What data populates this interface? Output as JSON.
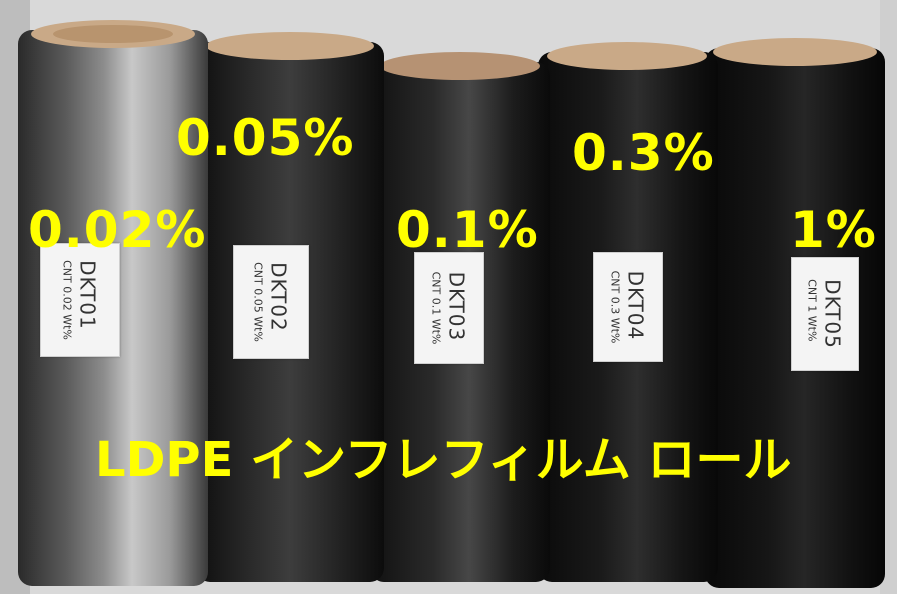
{
  "colors": {
    "overlay_text": "#ffff00",
    "background": "#d9d9d9",
    "core": "#c9a987"
  },
  "rolls": [
    {
      "percent": "0.02%",
      "label_code": "DKT01",
      "label_desc": "CNT 0.02 Wt%"
    },
    {
      "percent": "0.05%",
      "label_code": "DKT02",
      "label_desc": "CNT 0.05 Wt%"
    },
    {
      "percent": "0.1%",
      "label_code": "DKT03",
      "label_desc": "CNT 0.1 Wt%"
    },
    {
      "percent": "0.3%",
      "label_code": "DKT04",
      "label_desc": "CNT 0.3 Wt%"
    },
    {
      "percent": "1%",
      "label_code": "DKT05",
      "label_desc": "CNT 1 Wt%"
    }
  ],
  "caption": "LDPE インフレフィルム ロール"
}
